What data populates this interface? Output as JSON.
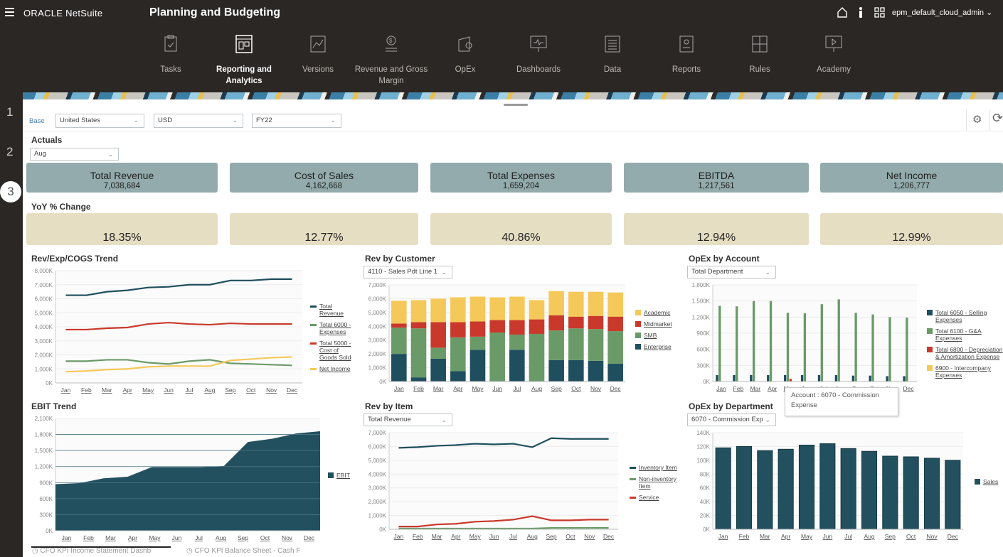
{
  "header": {
    "brand": "ORACLE NetSuite",
    "app_title": "Planning and Budgeting",
    "user": "epm_default_cloud_admin"
  },
  "nav": [
    {
      "label": "Tasks",
      "icon": "clipboard-icon"
    },
    {
      "label": "Reporting and Analytics",
      "icon": "report-icon",
      "active": true
    },
    {
      "label": "Versions",
      "icon": "versions-icon"
    },
    {
      "label": "Revenue and Gross Margin",
      "icon": "revenue-icon"
    },
    {
      "label": "OpEx",
      "icon": "opex-icon"
    },
    {
      "label": "Dashboards",
      "icon": "dashboard-icon"
    },
    {
      "label": "Data",
      "icon": "data-icon"
    },
    {
      "label": "Reports",
      "icon": "reports-icon"
    },
    {
      "label": "Rules",
      "icon": "rules-icon"
    },
    {
      "label": "Academy",
      "icon": "academy-icon"
    }
  ],
  "gutter": [
    "1",
    "2",
    "3"
  ],
  "filters": {
    "base": "Base",
    "entity": "United States",
    "currency": "USD",
    "year": "FY22"
  },
  "actuals": {
    "label": "Actuals",
    "period": "Aug"
  },
  "kpis": [
    {
      "title": "Total Revenue",
      "value": "7,038,684",
      "yoy": "18.35%"
    },
    {
      "title": "Cost of Sales",
      "value": "4,162,668",
      "yoy": "12.77%"
    },
    {
      "title": "Total Expenses",
      "value": "1,659,204",
      "yoy": "40.86%"
    },
    {
      "title": "EBITDA",
      "value": "1,217,561",
      "yoy": "12.94%"
    },
    {
      "title": "Net Income",
      "value": "1,206,777",
      "yoy": "12.99%"
    }
  ],
  "yoy_label": "YoY % Change",
  "tooltip": "Account : 6070 - Commission Expense",
  "bottom_tabs": [
    "CFO KPI Income Statement Dashb",
    "CFO KPI Balance Sheet - Cash F"
  ],
  "chart_data": [
    {
      "id": "c1",
      "type": "line",
      "title": "Rev/Exp/COGS Trend",
      "ylim": [
        0,
        8000
      ],
      "ystep": 1000,
      "yunit": "K",
      "categories": [
        "Jan",
        "Feb",
        "Mar",
        "Apr",
        "May",
        "Jun",
        "Jul",
        "Aug",
        "Sep",
        "Oct",
        "Nov",
        "Dec"
      ],
      "series": [
        {
          "name": "Total Revenue",
          "color": "#1f4e5f",
          "values": [
            6250,
            6250,
            6500,
            6600,
            6800,
            6850,
            7000,
            7000,
            7300,
            7300,
            7400,
            7400
          ]
        },
        {
          "name": "Total 6000 - Expenses",
          "color": "#6a9a68",
          "values": [
            1550,
            1550,
            1650,
            1650,
            1450,
            1350,
            1550,
            1650,
            1400,
            1350,
            1300,
            1250
          ]
        },
        {
          "name": "Total 5000 - Cost of Goods Sold",
          "color": "#c9392b",
          "values": [
            3800,
            3800,
            3900,
            3950,
            4200,
            4300,
            4200,
            4150,
            4250,
            4200,
            4200,
            4200
          ]
        },
        {
          "name": "Net Income",
          "color": "#f5c85a",
          "values": [
            800,
            850,
            950,
            1000,
            1150,
            1200,
            1200,
            1200,
            1600,
            1700,
            1800,
            1850
          ]
        }
      ]
    },
    {
      "id": "c2",
      "type": "stacked-bar",
      "title": "Rev by Customer",
      "selector": "4110 - Sales Pdt Line 1",
      "ylim": [
        0,
        7000
      ],
      "ystep": 1000,
      "yunit": "K",
      "categories": [
        "Jan",
        "Feb",
        "Mar",
        "Apr",
        "May",
        "Jun",
        "Jul",
        "Aug",
        "Sep",
        "Oct",
        "Nov",
        "Dec"
      ],
      "series": [
        {
          "name": "Enterprise",
          "color": "#1f4e5f",
          "values": [
            2000,
            300,
            1650,
            750,
            2300,
            0,
            2300,
            0,
            1550,
            1550,
            1500,
            1300
          ]
        },
        {
          "name": "SMB",
          "color": "#6a9a68",
          "values": [
            1900,
            3550,
            800,
            2450,
            950,
            3550,
            1100,
            3450,
            2150,
            2300,
            2300,
            2350
          ]
        },
        {
          "name": "Midmarket",
          "color": "#c9392b",
          "values": [
            300,
            450,
            1850,
            1100,
            1100,
            900,
            1050,
            1050,
            1100,
            850,
            950,
            1050
          ]
        },
        {
          "name": "Academic",
          "color": "#f5c85a",
          "values": [
            1650,
            1600,
            1700,
            1800,
            1800,
            1650,
            1700,
            1400,
            1750,
            1800,
            1750,
            1750
          ]
        }
      ],
      "legend_order": [
        "Academic",
        "Midmarket",
        "SMB",
        "Enterprise"
      ]
    },
    {
      "id": "c3",
      "type": "grouped-bar",
      "title": "OpEx by Account",
      "selector": "Total Department",
      "ylim": [
        0,
        1800
      ],
      "ystep": 300,
      "yunit": "K",
      "categories": [
        "Jan",
        "Feb",
        "Mar",
        "Apr",
        "May",
        "Jun",
        "Jul",
        "Aug",
        "Sep",
        "Oct",
        "Nov",
        "Dec"
      ],
      "series": [
        {
          "name": "Total 6050 - Selling Expenses",
          "color": "#1f4e5f",
          "values": [
            120,
            120,
            120,
            120,
            120,
            120,
            120,
            120,
            110,
            110,
            100,
            100
          ]
        },
        {
          "name": "Total 6100 - G&A Expenses",
          "color": "#6a9a68",
          "values": [
            1410,
            1400,
            1500,
            1500,
            1280,
            1270,
            1440,
            1530,
            1280,
            1250,
            1200,
            1190
          ]
        },
        {
          "name": "Total 6800 - Depreciation & Amortization Expense",
          "color": "#c9392b",
          "values": [
            0,
            0,
            0,
            0,
            50,
            0,
            0,
            0,
            0,
            0,
            0,
            0
          ]
        },
        {
          "name": "6900 - Intercompany Expenses",
          "color": "#f5c85a",
          "values": [
            0,
            0,
            0,
            0,
            0,
            0,
            0,
            0,
            0,
            0,
            0,
            0
          ]
        }
      ]
    },
    {
      "id": "c4",
      "type": "area",
      "title": "EBIT Trend",
      "ylim": [
        0,
        2100
      ],
      "ystep": 300,
      "yunit": "K",
      "categories": [
        "Jan",
        "Feb",
        "Mar",
        "Apr",
        "May",
        "Jun",
        "Jul",
        "Aug",
        "Sep",
        "Oct",
        "Nov",
        "Dec"
      ],
      "series": [
        {
          "name": "EBIT",
          "color": "#22505f",
          "values": [
            870,
            890,
            980,
            1010,
            1190,
            1190,
            1190,
            1210,
            1660,
            1720,
            1820,
            1860
          ]
        }
      ]
    },
    {
      "id": "c5",
      "type": "line",
      "title": "Rev by Item",
      "selector": "Total Revenue",
      "ylim": [
        0,
        7000
      ],
      "ystep": 1000,
      "yunit": "K",
      "categories": [
        "Jan",
        "Feb",
        "Mar",
        "Apr",
        "May",
        "Jun",
        "Jul",
        "Aug",
        "Sep",
        "Oct",
        "Nov",
        "Dec"
      ],
      "series": [
        {
          "name": "Inventory Item",
          "color": "#1f4e5f",
          "values": [
            5900,
            5950,
            6050,
            6100,
            6200,
            6150,
            6200,
            5950,
            6600,
            6550,
            6550,
            6550
          ]
        },
        {
          "name": "Non-inventory Item",
          "color": "#6a9a68",
          "values": [
            50,
            50,
            50,
            50,
            50,
            50,
            50,
            50,
            100,
            100,
            100,
            100
          ]
        },
        {
          "name": "Service",
          "color": "#c9392b",
          "values": [
            200,
            200,
            350,
            400,
            550,
            600,
            700,
            950,
            650,
            650,
            700,
            700
          ]
        }
      ]
    },
    {
      "id": "c6",
      "type": "bar",
      "title": "OpEx by Department",
      "selector": "6070 - Commission Exp",
      "ylim": [
        0,
        140
      ],
      "ystep": 20,
      "yunit": "K",
      "categories": [
        "Jan",
        "Feb",
        "Mar",
        "Apr",
        "May",
        "Jun",
        "Jul",
        "Aug",
        "Sep",
        "Oct",
        "Nov",
        "Dec"
      ],
      "series": [
        {
          "name": "Sales",
          "color": "#22505f",
          "values": [
            118,
            120,
            114,
            116,
            122,
            124,
            117,
            113,
            106,
            105,
            103,
            100
          ]
        }
      ]
    }
  ]
}
